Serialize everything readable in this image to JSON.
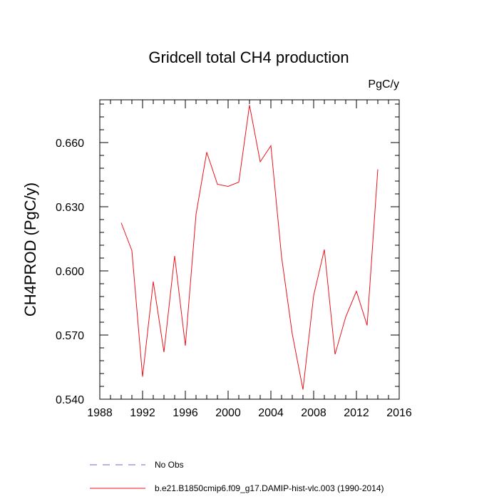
{
  "chart_data": {
    "type": "line",
    "title": "Gridcell total CH4 production",
    "units_label": "PgC/y",
    "xlabel": "",
    "ylabel": "CH4PROD  (PgC/y)",
    "xlim": [
      1988,
      2016
    ],
    "ylim": [
      0.54,
      0.68
    ],
    "x_ticks": [
      1988,
      1992,
      1996,
      2000,
      2004,
      2008,
      2012,
      2016
    ],
    "x_minor_step": 1,
    "y_ticks": [
      0.54,
      0.57,
      0.6,
      0.63,
      0.66
    ],
    "y_tick_labels": [
      "0.540",
      "0.570",
      "0.600",
      "0.630",
      "0.660"
    ],
    "y_minor_step": 0.006,
    "grid": false,
    "series": [
      {
        "name": "b.e21.B1850cmip6.f09_g17.DAMIP-hist-vlc.003 (1990-2014)",
        "color": "#e8141d",
        "x": [
          1990,
          1991,
          1992,
          1993,
          1994,
          1995,
          1996,
          1997,
          1998,
          1999,
          2000,
          2001,
          2002,
          2003,
          2004,
          2005,
          2006,
          2007,
          2008,
          2009,
          2010,
          2011,
          2012,
          2013,
          2014
        ],
        "values": [
          0.6225,
          0.6095,
          0.5505,
          0.595,
          0.562,
          0.607,
          0.565,
          0.6265,
          0.6555,
          0.6405,
          0.6395,
          0.6415,
          0.6775,
          0.651,
          0.6585,
          0.6065,
          0.5705,
          0.5445,
          0.5885,
          0.61,
          0.561,
          0.5785,
          0.5905,
          0.5745,
          0.6475
        ]
      }
    ],
    "legend": [
      {
        "label": "No Obs",
        "style": "dashed",
        "color": "#6b6bd8"
      },
      {
        "label": "b.e21.B1850cmip6.f09_g17.DAMIP-hist-vlc.003 (1990-2014)",
        "style": "solid",
        "color": "#e8141d"
      }
    ]
  }
}
